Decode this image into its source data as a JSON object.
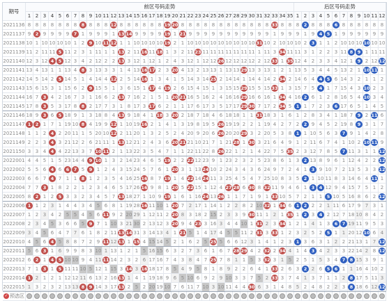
{
  "header": {
    "period_label": "期号",
    "front_zone_title": "前区号码走势",
    "back_zone_title": "后区号码走势",
    "presel_label": "预选区"
  },
  "front_numbers": [
    "1",
    "2",
    "3",
    "4",
    "5",
    "6",
    "7",
    "8",
    "9",
    "10",
    "11",
    "12",
    "13",
    "14",
    "15",
    "16",
    "17",
    "18",
    "19",
    "20",
    "21",
    "22",
    "23",
    "24",
    "25",
    "26",
    "27",
    "28",
    "29",
    "30",
    "31",
    "32",
    "33",
    "34",
    "35"
  ],
  "back_numbers": [
    "1",
    "2",
    "3",
    "4",
    "5",
    "6",
    "7",
    "8",
    "9",
    "10",
    "11",
    "12"
  ],
  "colors": {
    "front_ball": "#c0504d",
    "back_ball": "#2f5fc0",
    "stat_blue": "#2a5bd7",
    "stat_orange": "#e67e22"
  },
  "rows": [
    {
      "p": "2021136",
      "f": [
        8,
        12,
        19,
        20,
        33
      ],
      "b": [
        2,
        6
      ]
    },
    {
      "p": "2021137",
      "f": [
        2,
        7,
        13,
        14,
        19,
        21
      ],
      "b": [
        4,
        5
      ]
    },
    {
      "p": "2021138",
      "f": [
        9,
        11,
        12,
        19,
        31
      ],
      "b": [
        3,
        10
      ]
    },
    {
      "p": "2021139",
      "f": [
        5,
        13,
        16,
        18,
        23,
        34
      ],
      "b": [
        8,
        9
      ]
    },
    {
      "p": "2021140",
      "f": [
        4,
        5,
        13,
        26,
        33,
        35
      ],
      "b": [
        9,
        12
      ]
    },
    {
      "p": "2021141",
      "f": [
        8,
        16,
        17,
        20,
        29
      ],
      "b": [
        10,
        11
      ]
    },
    {
      "p": "2021142",
      "f": [
        5,
        12,
        16,
        25,
        34
      ],
      "b": [
        4,
        5
      ]
    },
    {
      "p": "2021143",
      "f": [
        9,
        17,
        19,
        29,
        33
      ],
      "b": [
        4,
        10
      ]
    },
    {
      "p": "2021144",
      "f": [
        3,
        13,
        20,
        21,
        29,
        34
      ],
      "b": [
        2,
        10
      ]
    },
    {
      "p": "2021145",
      "f": [
        3,
        8,
        17,
        29,
        30,
        34
      ],
      "b": [
        1,
        6
      ]
    },
    {
      "p": "2021146",
      "f": [
        3,
        5,
        13,
        18,
        20,
        31
      ],
      "b": [
        9,
        11
      ]
    },
    {
      "p": "2021147",
      "f": [
        1,
        2,
        8,
        12,
        16,
        26
      ],
      "b": [
        2,
        9
      ]
    },
    {
      "p": "2021148",
      "f": [
        4,
        12,
        26,
        29
      ],
      "b": [
        1,
        7
      ]
    },
    {
      "p": "2021149",
      "f": [
        4,
        13,
        20,
        21,
        28,
        30
      ],
      "b": [
        10,
        11
      ]
    },
    {
      "p": "2021150",
      "f": [
        4,
        10,
        11,
        26,
        35
      ],
      "b": [
        7,
        12
      ]
    },
    {
      "p": "2022001",
      "f": [
        9,
        10,
        19,
        22
      ],
      "b": [
        2,
        12
      ]
    },
    {
      "p": "2022002",
      "f": [
        4,
        6,
        7,
        9,
        20,
        24
      ],
      "b": [
        3,
        12
      ]
    },
    {
      "p": "2022003",
      "f": [
        4,
        8,
        16,
        19,
        22,
        24
      ],
      "b": [
        2,
        11
      ]
    },
    {
      "p": "2022004",
      "f": [
        3,
        16,
        20,
        22,
        27,
        28,
        30,
        32
      ],
      "b": [
        3,
        4
      ]
    },
    {
      "p": "2022005",
      "f": [
        2,
        5,
        13,
        19,
        24,
        26,
        33
      ],
      "b": [
        5,
        12
      ]
    },
    {
      "p": "2022006",
      "f": [
        1,
        16,
        20,
        32,
        34
      ],
      "b": [
        1,
        2
      ]
    },
    {
      "p": "2022007",
      "f": [
        11,
        20,
        30,
        35
      ],
      "b": [
        2,
        4
      ]
    },
    {
      "p": "2022008",
      "f": [
        9,
        20,
        23,
        31,
        34
      ],
      "b": [
        6,
        7
      ]
    },
    {
      "p": "2022009",
      "f": [
        13,
        14,
        21,
        31,
        33
      ],
      "b": [
        5,
        10
      ]
    },
    {
      "p": "2022010",
      "f": [
        4,
        11,
        13,
        15,
        25
      ],
      "b": [
        1,
        12
      ]
    },
    {
      "p": "2022011",
      "f": [
        3,
        28,
        29,
        32,
        34
      ],
      "b": [
        3,
        12
      ]
    },
    {
      "p": "2022012",
      "f": [
        2,
        4,
        5,
        11,
        25,
        32
      ],
      "b": [
        7,
        8
      ]
    },
    {
      "p": "2022013",
      "f": [
        3,
        5,
        14,
        16,
        33
      ],
      "b": [
        2,
        5,
        6
      ]
    },
    {
      "p": "2022014",
      "f": [
        1,
        13,
        33
      ],
      "b": [
        8
      ]
    },
    {
      "p": "2022015",
      "f": [
        8,
        9,
        13,
        30
      ],
      "b": [
        8,
        12
      ]
    }
  ]
}
